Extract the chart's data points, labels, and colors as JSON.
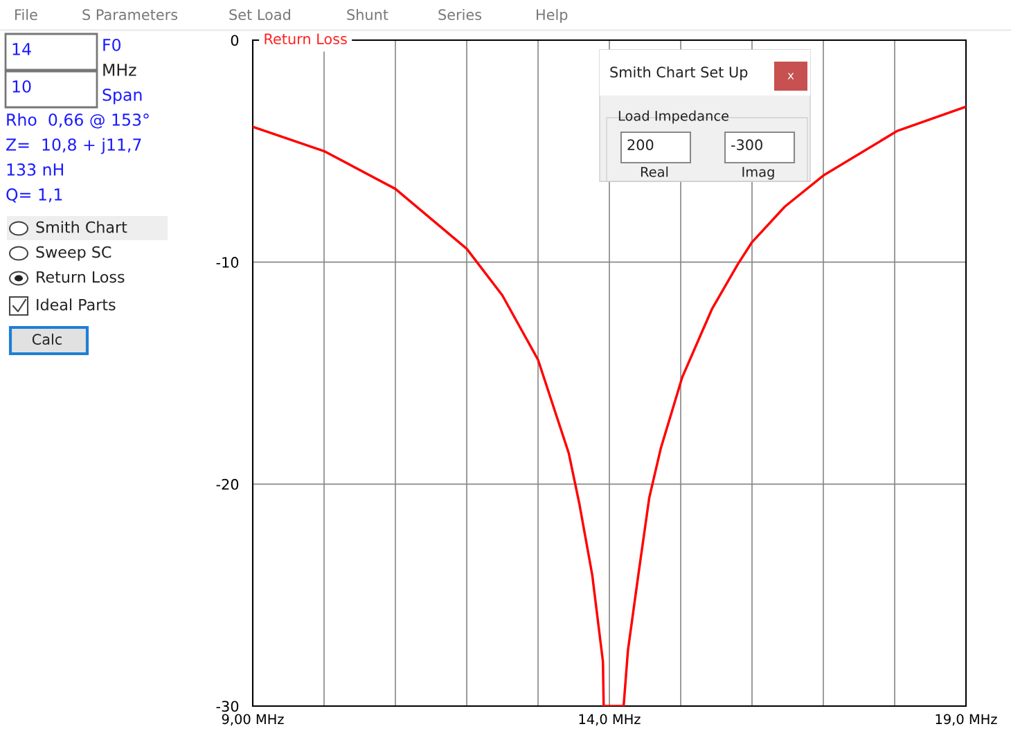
{
  "chart_data": {
    "type": "line",
    "title": "Return Loss",
    "x": [
      9.0,
      10.0,
      11.0,
      12.0,
      12.5,
      13.0,
      13.43,
      13.58,
      13.76,
      13.91,
      13.92,
      14.2,
      14.26,
      14.41,
      14.56,
      14.72,
      15.02,
      15.44,
      15.8,
      16.0,
      16.46,
      17.0,
      18.03,
      19.0
    ],
    "series": [
      {
        "color": "#ff0000",
        "values": [
          -3.9,
          -5.0,
          -6.7,
          -9.4,
          -11.5,
          -14.4,
          -18.6,
          -20.9,
          -24.1,
          -28.0,
          -30,
          -30,
          -27.5,
          -24.0,
          -20.6,
          -18.4,
          -15.2,
          -12.1,
          -10.1,
          -9.1,
          -7.5,
          -6.1,
          -4.1,
          -3.0
        ]
      }
    ],
    "xlim": [
      9,
      19
    ],
    "ylim": [
      -30,
      0
    ],
    "xticks": [
      {
        "value": 9,
        "label": "9,00 MHz"
      },
      {
        "value": 10,
        "label": null
      },
      {
        "value": 11,
        "label": null
      },
      {
        "value": 12,
        "label": null
      },
      {
        "value": 13,
        "label": null
      },
      {
        "value": 14,
        "label": "14,0 MHz"
      },
      {
        "value": 15,
        "label": null
      },
      {
        "value": 16,
        "label": null
      },
      {
        "value": 17,
        "label": null
      },
      {
        "value": 18,
        "label": null
      },
      {
        "value": 19,
        "label": "19,0 MHz"
      }
    ],
    "yticks": [
      -30,
      -20,
      -10,
      0
    ],
    "grid": true,
    "marker": "none",
    "line_style": "solid",
    "legend": false,
    "annotations": [
      "File",
      "S Parameters",
      "Set Load",
      "Shunt",
      "Series",
      "Help",
      "14",
      "F0",
      "MHz",
      "10",
      "Span",
      "Rho  0,66 @ 153°",
      "Z=  10,8 + j11,7",
      "133 nH",
      "Q= 1,1",
      "Smith Chart",
      "Sweep SC",
      "Return Loss",
      "Ideal Parts",
      "Calc",
      "Smith Chart Set Up",
      "x",
      "Load Impedance",
      "200",
      "-300",
      "Real",
      "Imag"
    ]
  }
}
